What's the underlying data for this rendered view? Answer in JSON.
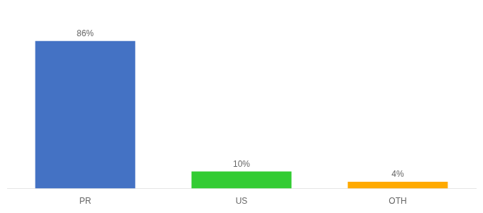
{
  "chart_data": {
    "type": "bar",
    "categories": [
      "PR",
      "US",
      "OTH"
    ],
    "values": [
      86,
      10,
      4
    ],
    "value_labels": [
      "86%",
      "10%",
      "4%"
    ],
    "data_labels": true,
    "colors": [
      "#4472c4",
      "#33cc33",
      "#ffaa00"
    ],
    "ylim": [
      0,
      100
    ],
    "grid": false,
    "tick_labels": "x"
  }
}
